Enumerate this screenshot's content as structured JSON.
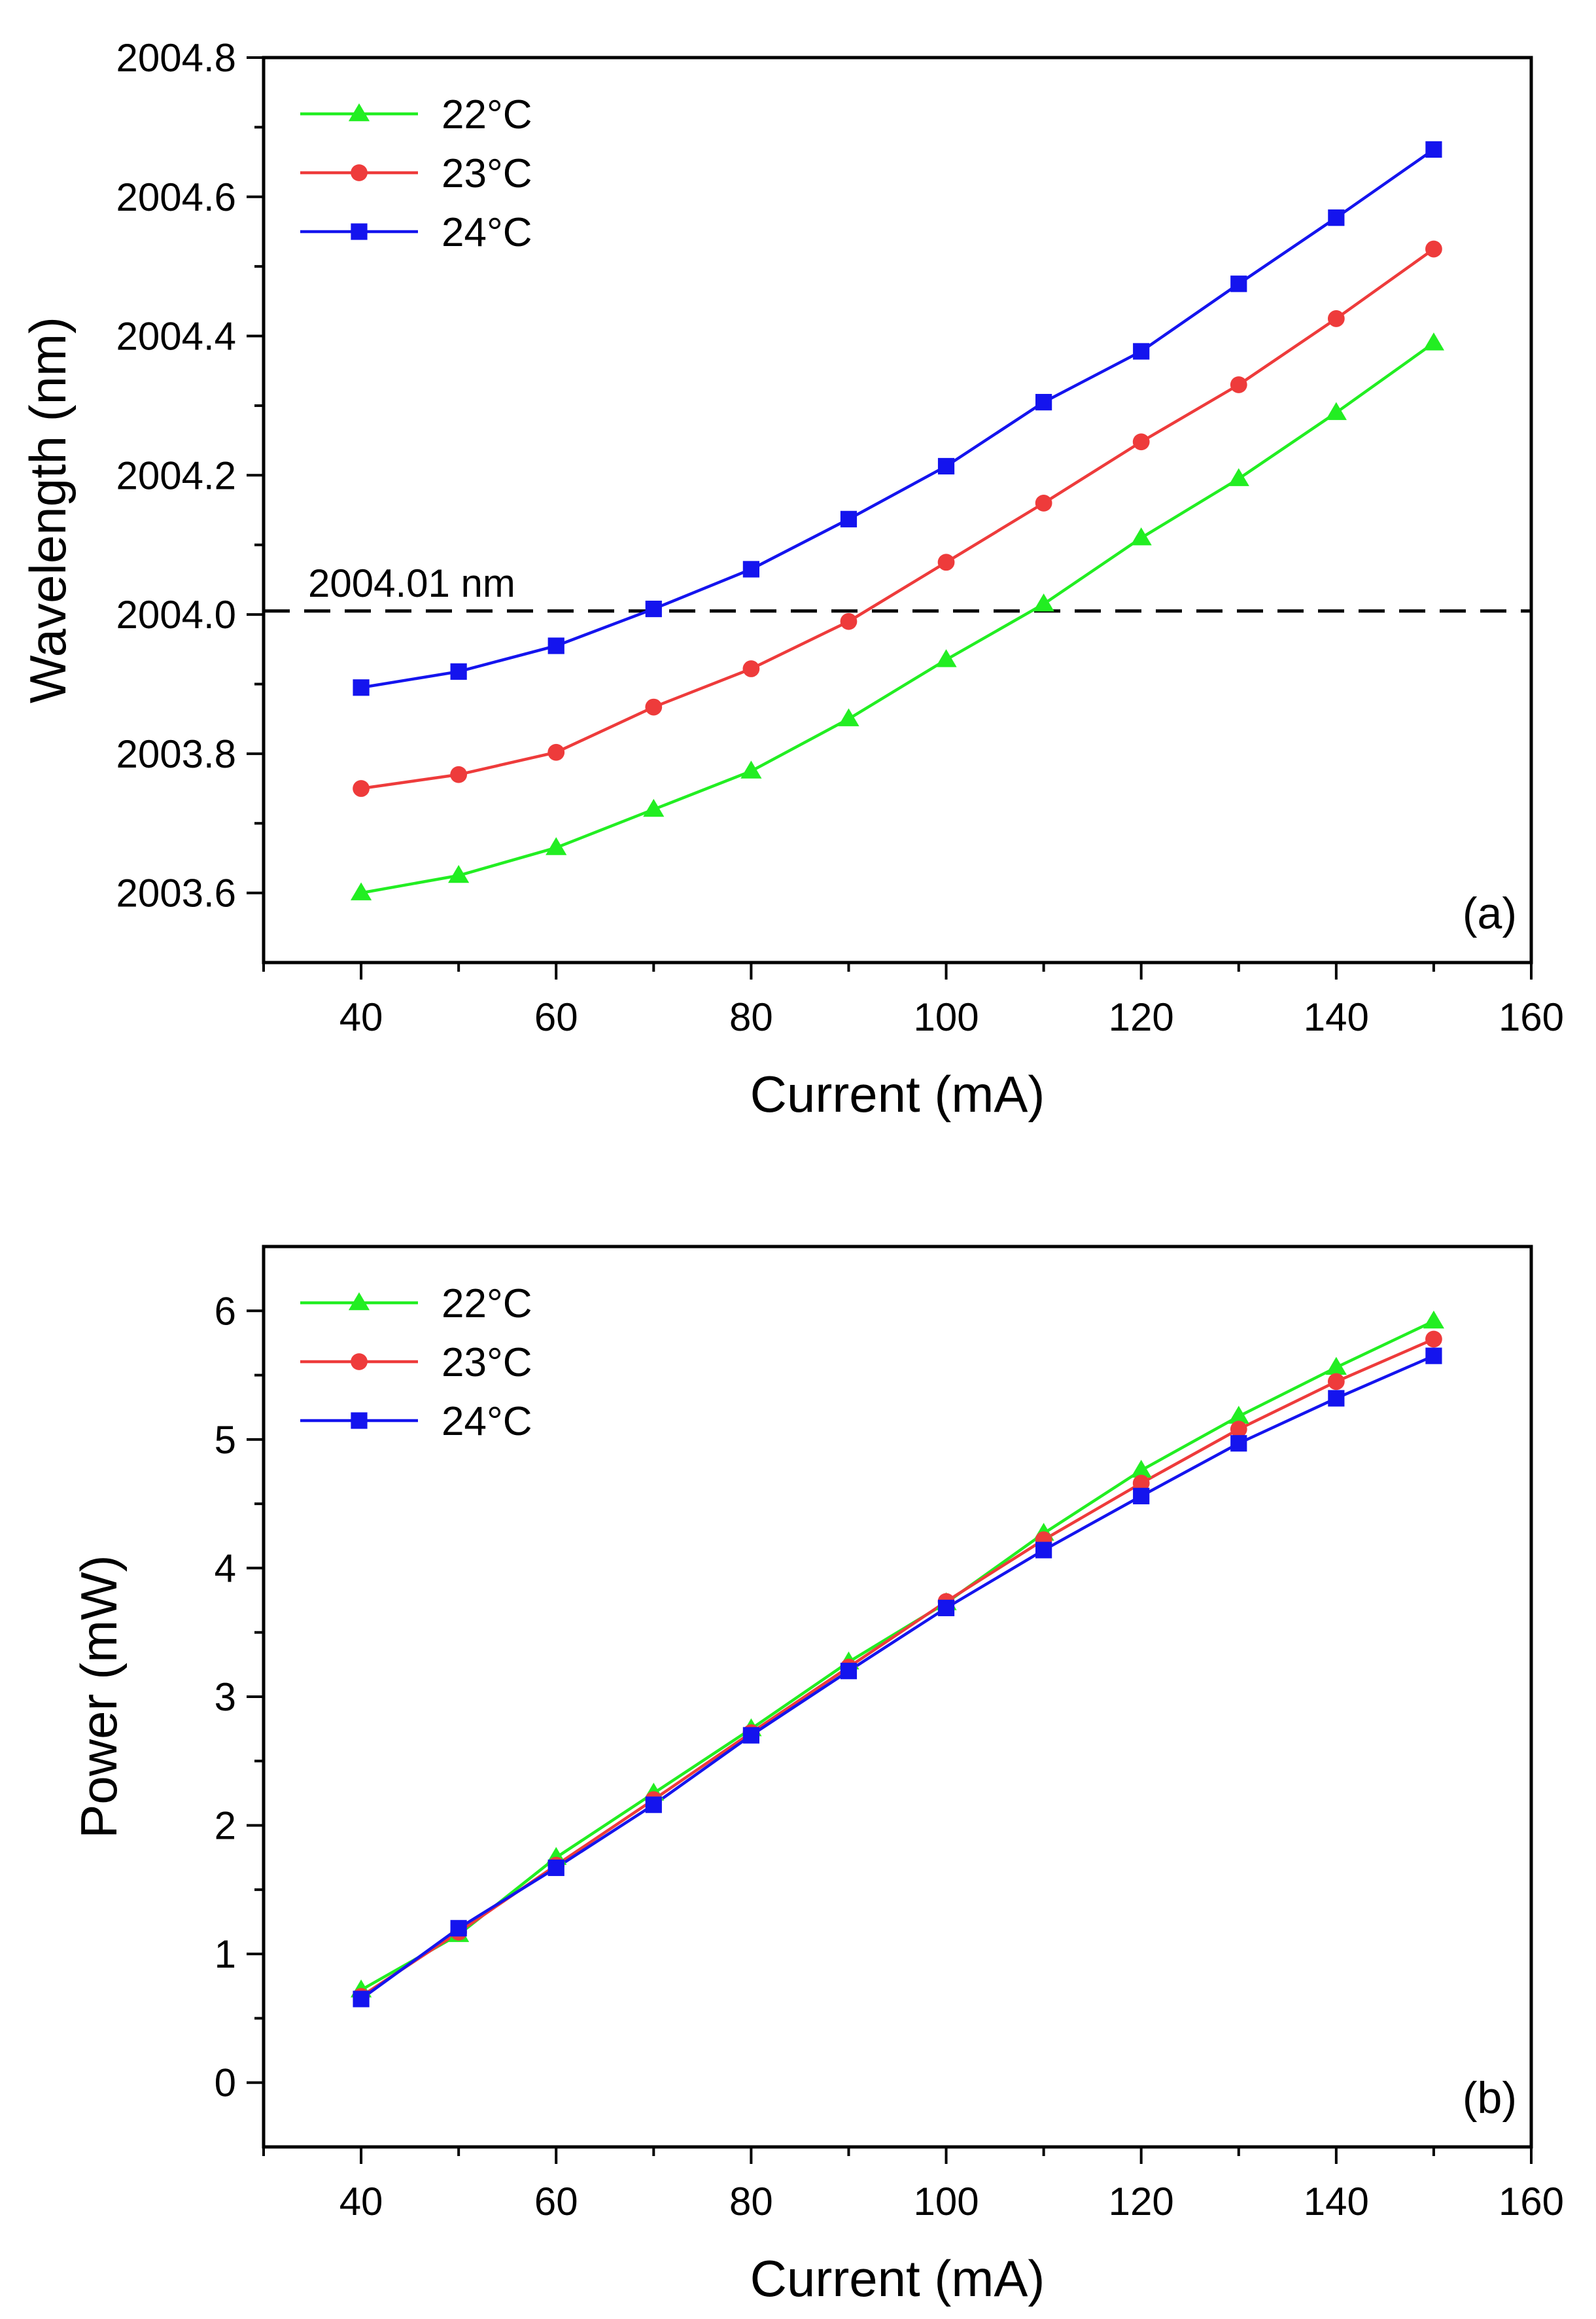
{
  "chart_data": [
    {
      "type": "line",
      "panel_label": "(a)",
      "xlabel": "Current (mA)",
      "ylabel": "Wavelength (nm)",
      "xlim": [
        30,
        160
      ],
      "ylim": [
        2003.5,
        2004.8
      ],
      "xticks": [
        40,
        60,
        80,
        100,
        120,
        140,
        160
      ],
      "yticks": [
        2003.6,
        2003.8,
        2004.0,
        2004.2,
        2004.4,
        2004.6,
        2004.8
      ],
      "ytick_labels": [
        "2003.6",
        "2003.8",
        "2004.0",
        "2004.2",
        "2004.4",
        "2004.6",
        "2004.8"
      ],
      "legend_position": "top-left",
      "x": [
        40,
        50,
        60,
        70,
        80,
        90,
        100,
        110,
        120,
        130,
        140,
        150
      ],
      "series": [
        {
          "name": "22°C",
          "color": "#22ee22",
          "marker": "triangle",
          "values": [
            2003.6,
            2003.625,
            2003.665,
            2003.72,
            2003.775,
            2003.85,
            2003.935,
            2004.015,
            2004.11,
            2004.195,
            2004.29,
            2004.39
          ]
        },
        {
          "name": "23°C",
          "color": "#ee3b3b",
          "marker": "circle",
          "values": [
            2003.75,
            2003.77,
            2003.802,
            2003.867,
            2003.922,
            2003.99,
            2004.075,
            2004.16,
            2004.248,
            2004.33,
            2004.425,
            2004.525
          ]
        },
        {
          "name": "24°C",
          "color": "#1414ee",
          "marker": "square",
          "values": [
            2003.895,
            2003.918,
            2003.955,
            2004.008,
            2004.065,
            2004.137,
            2004.213,
            2004.305,
            2004.378,
            2004.475,
            2004.57,
            2004.668
          ]
        }
      ],
      "reference_line": {
        "y": 2004.005,
        "label": "2004.01 nm",
        "style": "dashed",
        "color": "#000000"
      }
    },
    {
      "type": "line",
      "panel_label": "(b)",
      "xlabel": "Current (mA)",
      "ylabel": "Power (mW)",
      "xlim": [
        30,
        160
      ],
      "ylim": [
        -0.5,
        6.5
      ],
      "xticks": [
        40,
        60,
        80,
        100,
        120,
        140,
        160
      ],
      "yticks": [
        0,
        1,
        2,
        3,
        4,
        5,
        6
      ],
      "ytick_labels": [
        "0",
        "1",
        "2",
        "3",
        "4",
        "5",
        "6"
      ],
      "legend_position": "top-left",
      "x": [
        40,
        50,
        60,
        70,
        80,
        90,
        100,
        110,
        120,
        130,
        140,
        150
      ],
      "series": [
        {
          "name": "22°C",
          "color": "#22ee22",
          "marker": "triangle",
          "values": [
            0.72,
            1.15,
            1.75,
            2.25,
            2.75,
            3.27,
            3.73,
            4.27,
            4.76,
            5.18,
            5.56,
            5.92
          ]
        },
        {
          "name": "23°C",
          "color": "#ee3b3b",
          "marker": "circle",
          "values": [
            0.67,
            1.17,
            1.69,
            2.2,
            2.72,
            3.23,
            3.74,
            4.22,
            4.66,
            5.08,
            5.45,
            5.78
          ]
        },
        {
          "name": "24°C",
          "color": "#1414ee",
          "marker": "square",
          "values": [
            0.65,
            1.2,
            1.67,
            2.16,
            2.7,
            3.2,
            3.69,
            4.14,
            4.56,
            4.97,
            5.32,
            5.65
          ]
        }
      ]
    }
  ]
}
